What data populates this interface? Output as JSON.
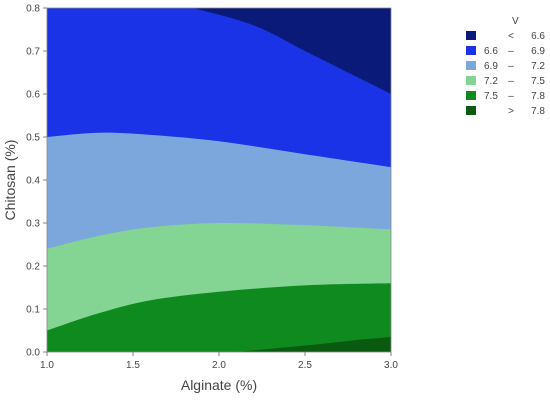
{
  "chart_data": {
    "type": "contour",
    "xlabel": "Alginate (%)",
    "ylabel": "Chitosan (%)",
    "xlim": [
      1.0,
      3.0
    ],
    "ylim": [
      0.0,
      0.8
    ],
    "x_ticks": [
      "1.0",
      "1.5",
      "2.0",
      "2.5",
      "3.0"
    ],
    "y_ticks": [
      "0.0",
      "0.1",
      "0.2",
      "0.3",
      "0.4",
      "0.5",
      "0.6",
      "0.7",
      "0.8"
    ],
    "grid": false,
    "legend_position": "right",
    "legend": {
      "title": "V",
      "entries": [
        {
          "symbol": "<",
          "low": "",
          "high": "6.6",
          "color": "#0a1a78"
        },
        {
          "symbol": "–",
          "low": "6.6",
          "high": "6.9",
          "color": "#1b33e6"
        },
        {
          "symbol": "–",
          "low": "6.9",
          "high": "7.2",
          "color": "#7ba7dc"
        },
        {
          "symbol": "–",
          "low": "7.2",
          "high": "7.5",
          "color": "#84d493"
        },
        {
          "symbol": "–",
          "low": "7.5",
          "high": "7.8",
          "color": "#0f8a1f"
        },
        {
          "symbol": ">",
          "low": "",
          "high": "7.8",
          "color": "#0a5a12"
        }
      ]
    },
    "contour_boundaries": [
      {
        "level": 6.6,
        "points": [
          [
            1.85,
            0.8
          ],
          [
            2.2,
            0.76
          ],
          [
            2.5,
            0.7
          ],
          [
            2.8,
            0.64
          ],
          [
            3.0,
            0.6
          ]
        ]
      },
      {
        "level": 6.9,
        "points": [
          [
            1.0,
            0.5
          ],
          [
            1.3,
            0.51
          ],
          [
            1.6,
            0.505
          ],
          [
            2.0,
            0.49
          ],
          [
            2.5,
            0.46
          ],
          [
            3.0,
            0.43
          ]
        ]
      },
      {
        "level": 7.2,
        "points": [
          [
            1.0,
            0.24
          ],
          [
            1.3,
            0.27
          ],
          [
            1.6,
            0.29
          ],
          [
            2.0,
            0.3
          ],
          [
            2.5,
            0.295
          ],
          [
            3.0,
            0.285
          ]
        ]
      },
      {
        "level": 7.5,
        "points": [
          [
            1.0,
            0.05
          ],
          [
            1.3,
            0.09
          ],
          [
            1.6,
            0.12
          ],
          [
            2.0,
            0.14
          ],
          [
            2.5,
            0.155
          ],
          [
            3.0,
            0.16
          ]
        ]
      },
      {
        "level": 7.8,
        "points": [
          [
            2.1,
            0.0
          ],
          [
            2.5,
            0.015
          ],
          [
            2.8,
            0.028
          ],
          [
            3.0,
            0.035
          ]
        ]
      }
    ]
  }
}
